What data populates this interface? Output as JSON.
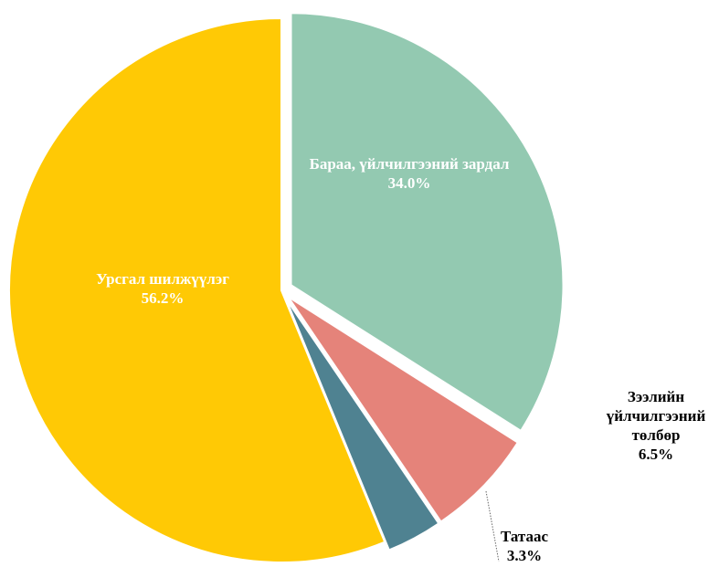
{
  "chart_data": {
    "type": "pie",
    "categories": [
      "Бараа, үйлчилгээний зардал",
      "Зээлийн үйлчилгээний төлбөр",
      "Татаас",
      "Урсгал шилжүүлэг"
    ],
    "values": [
      34.0,
      6.5,
      3.3,
      56.2
    ],
    "value_labels": [
      "34.0%",
      "6.5%",
      "3.3%",
      "56.2%"
    ],
    "colors": [
      "#93c9b1",
      "#e5837a",
      "#4f8291",
      "#ffc905"
    ]
  }
}
